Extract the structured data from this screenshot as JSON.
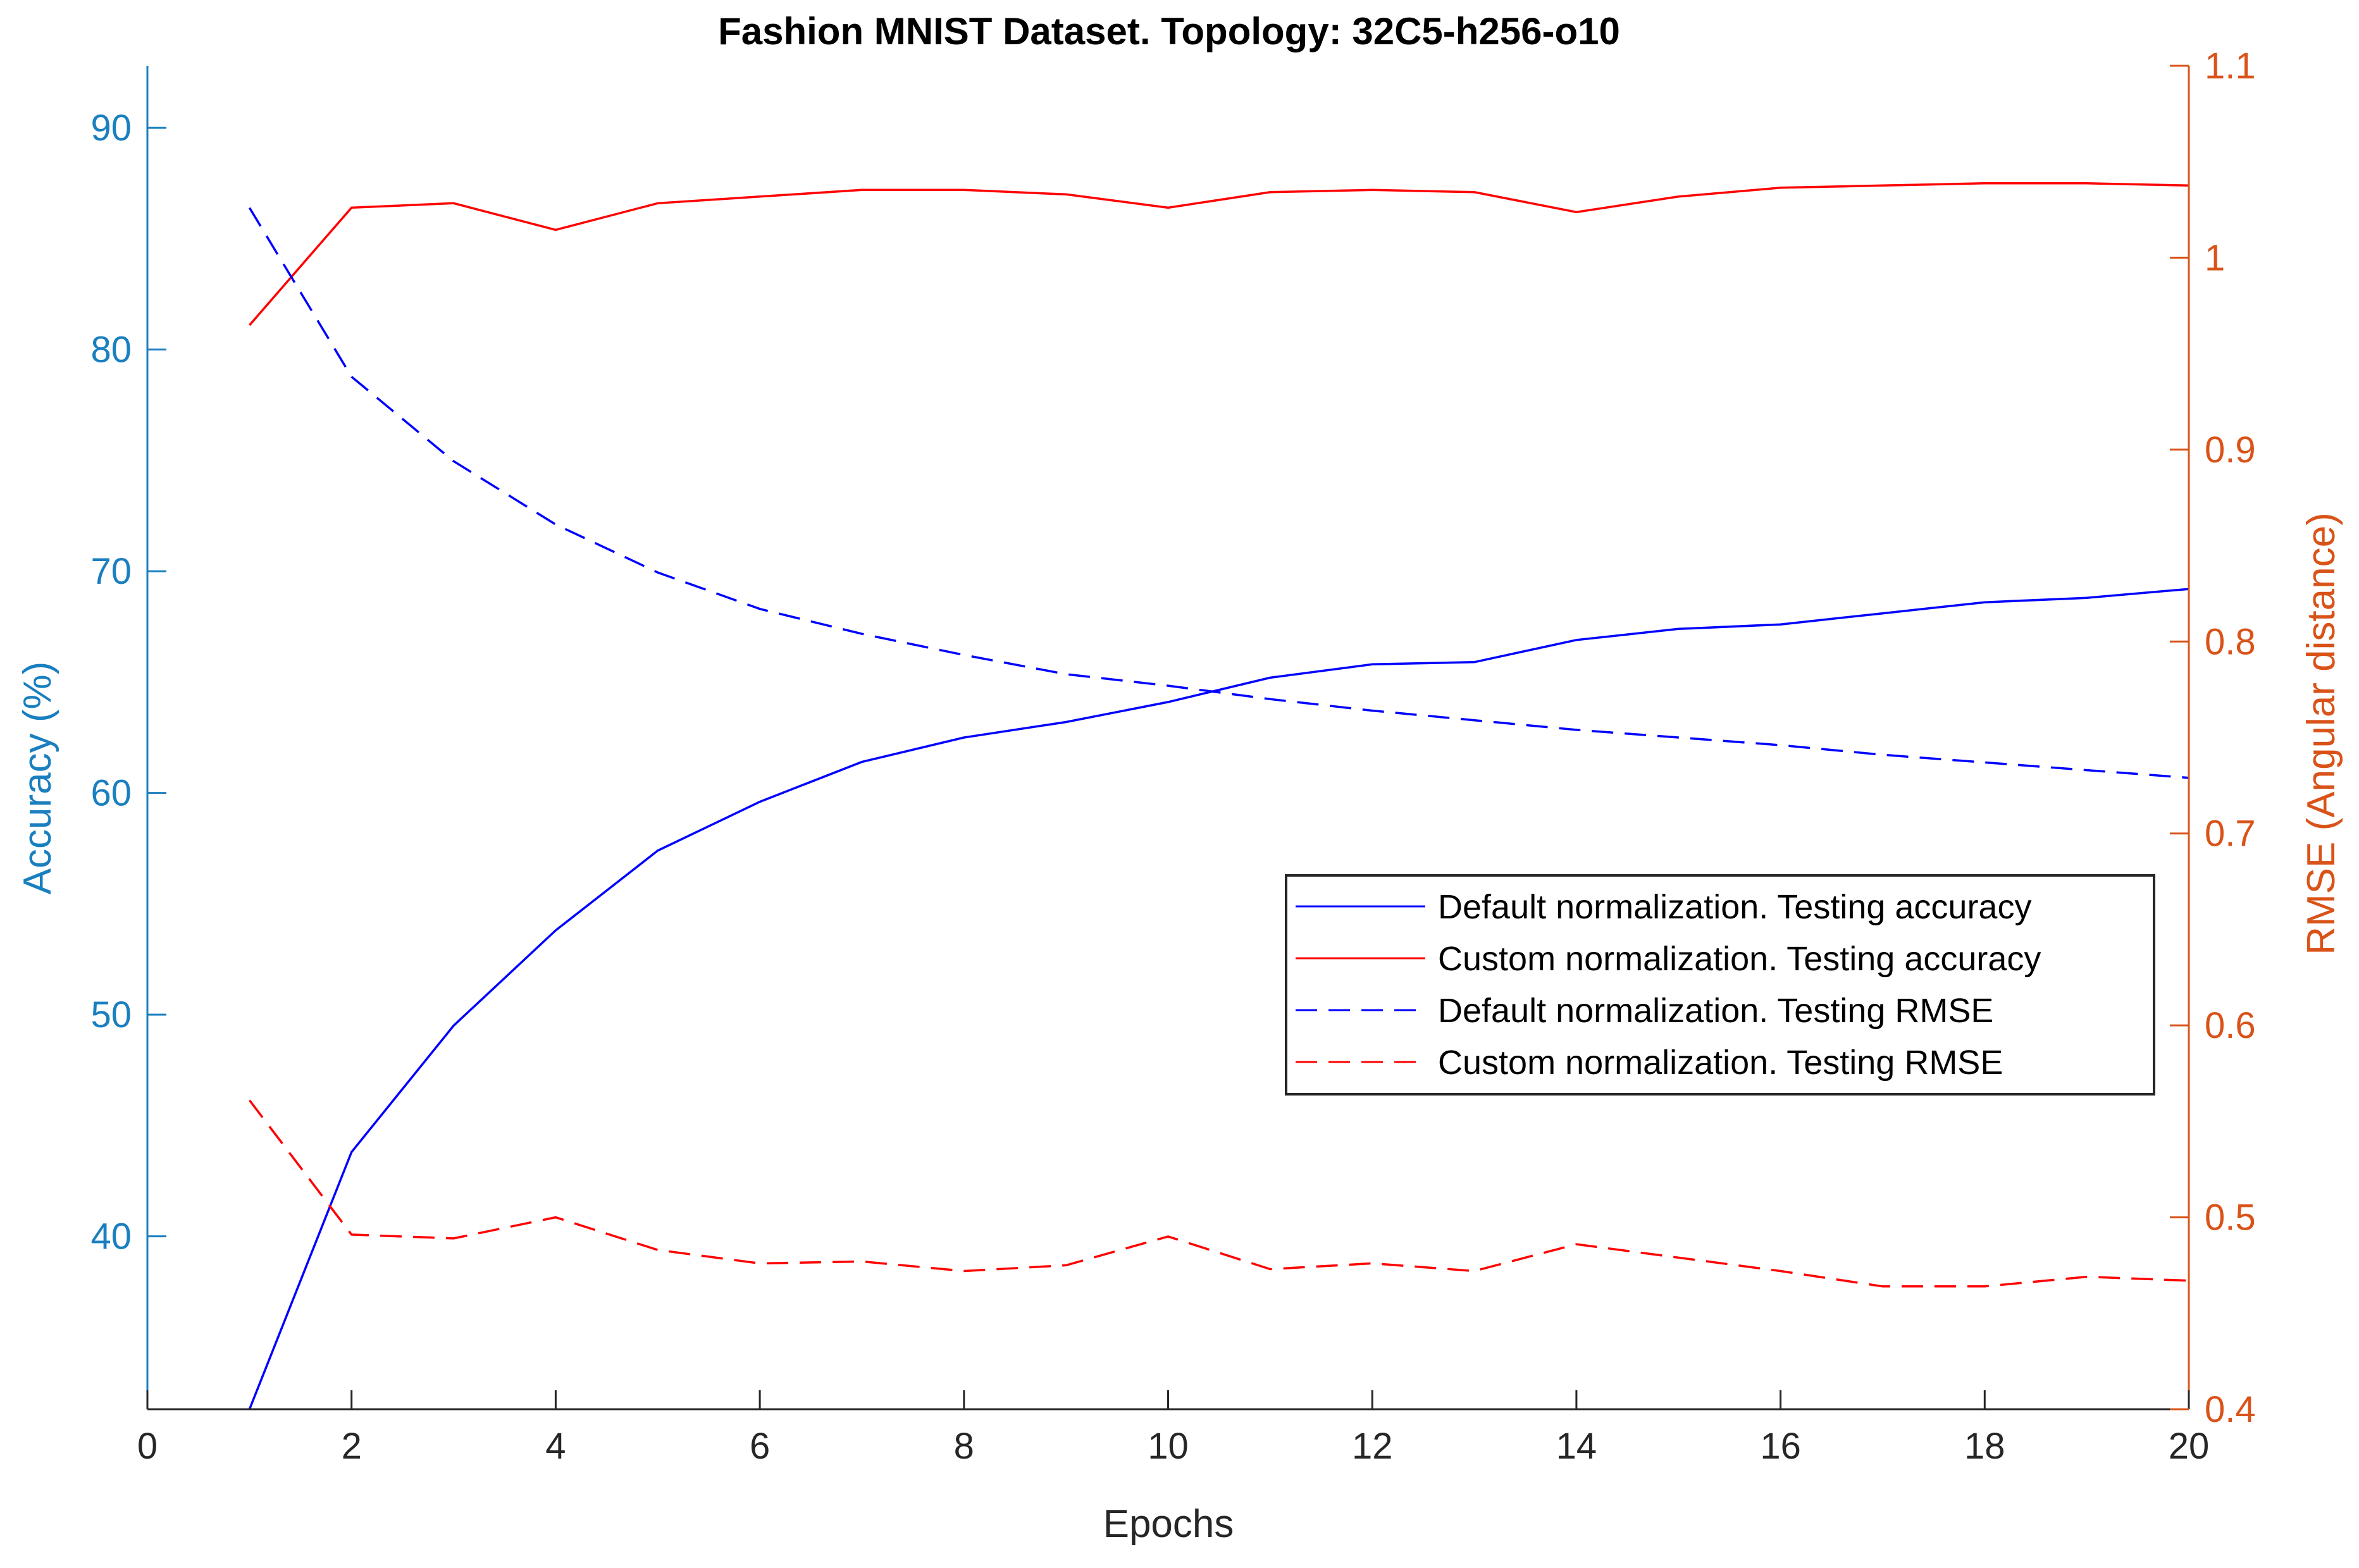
{
  "chart_data": {
    "type": "line",
    "title": "Fashion MNIST Dataset. Topology: 32C5-h256-o10",
    "xlabel": "Epochs",
    "ylabel_left": "Accuracy (%)",
    "ylabel_right": "RMSE (Angular distance)",
    "xlim": [
      0,
      20
    ],
    "ylim_left": [
      32.2,
      92.8
    ],
    "ylim_right": [
      0.4,
      1.1
    ],
    "x_ticks": [
      0,
      2,
      4,
      6,
      8,
      10,
      12,
      14,
      16,
      18,
      20
    ],
    "y_left_ticks": [
      40,
      50,
      60,
      70,
      80,
      90
    ],
    "y_right_ticks": [
      0.4,
      0.5,
      0.6,
      0.7,
      0.8,
      0.9,
      1,
      1.1
    ],
    "y_right_tick_labels": [
      "0.4",
      "0.5",
      "0.6",
      "0.7",
      "0.8",
      "0.9",
      "1",
      "1.1"
    ],
    "grid": false,
    "legend_position": "center-right",
    "colors": {
      "left_axis": "#1a7fbf",
      "right_axis": "#d95319",
      "default_series": "#0000ff",
      "custom_series": "#ff0000",
      "axis_black": "#262626"
    },
    "x": [
      1,
      2,
      3,
      4,
      5,
      6,
      7,
      8,
      9,
      10,
      11,
      12,
      13,
      14,
      15,
      16,
      17,
      18,
      19,
      20
    ],
    "series": [
      {
        "name": "Default normalization. Testing accuracy",
        "axis": "left",
        "style": "solid",
        "color": "#0000ff",
        "values": [
          32.2,
          43.8,
          49.5,
          53.8,
          57.4,
          59.6,
          61.4,
          62.5,
          63.2,
          64.1,
          65.2,
          65.8,
          65.9,
          66.9,
          67.4,
          67.6,
          68.1,
          68.6,
          68.8,
          69.2
        ]
      },
      {
        "name": "Custom normalization. Testing accuracy",
        "axis": "left",
        "style": "solid",
        "color": "#ff0000",
        "values": [
          81.1,
          86.4,
          86.6,
          85.4,
          86.6,
          86.9,
          87.2,
          87.2,
          87.0,
          86.4,
          87.1,
          87.2,
          87.1,
          86.2,
          86.9,
          87.3,
          87.4,
          87.5,
          87.5,
          87.4
        ]
      },
      {
        "name": "Default normalization. Testing RMSE",
        "axis": "right",
        "style": "dashed",
        "color": "#0000ff",
        "values": [
          1.026,
          0.938,
          0.894,
          0.861,
          0.836,
          0.817,
          0.804,
          0.793,
          0.783,
          0.777,
          0.77,
          0.764,
          0.759,
          0.754,
          0.75,
          0.746,
          0.741,
          0.737,
          0.733,
          0.729
        ]
      },
      {
        "name": "Custom normalization. Testing RMSE",
        "axis": "right",
        "style": "dashed",
        "color": "#ff0000",
        "values": [
          0.561,
          0.491,
          0.489,
          0.5,
          0.483,
          0.476,
          0.477,
          0.472,
          0.475,
          0.49,
          0.473,
          0.476,
          0.472,
          0.486,
          0.479,
          0.472,
          0.464,
          0.464,
          0.469,
          0.467
        ]
      }
    ]
  }
}
